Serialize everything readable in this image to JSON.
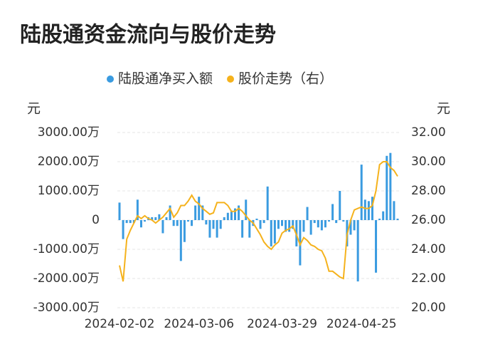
{
  "chart_data": {
    "type": "bar_line",
    "title": "陆股通资金流向与股价走势",
    "y_unit": "元",
    "y2_unit": "元",
    "categories": [
      "2024-02-02",
      null,
      null,
      null,
      null,
      null,
      null,
      null,
      null,
      null,
      null,
      null,
      null,
      null,
      null,
      null,
      null,
      null,
      null,
      null,
      null,
      null,
      "2024-03-06",
      null,
      null,
      null,
      null,
      null,
      null,
      null,
      null,
      null,
      null,
      null,
      null,
      null,
      null,
      null,
      null,
      null,
      null,
      null,
      null,
      null,
      null,
      "2024-03-29",
      null,
      null,
      null,
      null,
      null,
      null,
      null,
      null,
      null,
      null,
      null,
      null,
      null,
      null,
      null,
      null,
      null,
      null,
      null,
      null,
      null,
      "2024-04-25",
      null,
      null,
      null,
      null,
      null,
      null,
      null,
      null,
      null,
      null
    ],
    "series": [
      {
        "name": "陆股通净买入额",
        "color": "#3a9be0",
        "kind": "bar",
        "axis": "y",
        "values": [
          600,
          -650,
          -100,
          -100,
          -100,
          700,
          -250,
          -50,
          100,
          100,
          100,
          200,
          -450,
          100,
          500,
          -200,
          -200,
          -1400,
          -750,
          -50,
          -200,
          500,
          800,
          500,
          -150,
          -600,
          -300,
          -600,
          -300,
          100,
          250,
          300,
          400,
          500,
          -600,
          700,
          -600,
          -200,
          50,
          -300,
          -100,
          1150,
          -900,
          -800,
          -300,
          -200,
          -400,
          -400,
          -300,
          -900,
          -1550,
          -400,
          450,
          -500,
          -100,
          -250,
          -350,
          -250,
          -50,
          550,
          -100,
          1000,
          -50,
          -900,
          -500,
          -350,
          -2100,
          1900,
          700,
          650,
          800,
          -1800,
          50,
          300,
          2200,
          2300,
          650,
          50
        ]
      },
      {
        "name": "股价走势（右）",
        "color": "#f5b21c",
        "kind": "line",
        "axis": "y2",
        "values": [
          22.9,
          21.8,
          24.7,
          25.3,
          25.8,
          26.3,
          26.1,
          26.3,
          26.1,
          26.0,
          25.8,
          26.0,
          26.2,
          26.5,
          26.8,
          26.2,
          26.5,
          27.0,
          27.0,
          27.3,
          27.7,
          27.3,
          27.1,
          26.8,
          26.6,
          26.4,
          26.5,
          27.2,
          27.2,
          27.2,
          27.0,
          26.6,
          26.6,
          26.8,
          26.6,
          26.3,
          26.0,
          25.8,
          25.4,
          25.0,
          24.5,
          24.2,
          24.0,
          24.3,
          24.5,
          25.1,
          25.3,
          25.4,
          25.6,
          25.0,
          24.3,
          24.8,
          24.6,
          24.3,
          24.2,
          24.0,
          23.9,
          23.4,
          22.5,
          22.5,
          22.3,
          22.1,
          22.0,
          25.0,
          26.0,
          26.7,
          26.8,
          26.9,
          26.8,
          26.8,
          27.0,
          28.0,
          29.8,
          30.0,
          30.0,
          29.6,
          29.4,
          29.0
        ]
      }
    ],
    "ylim": [
      -3000,
      3000
    ],
    "yticks": [
      {
        "value": 3000,
        "label": "3000.00万"
      },
      {
        "value": 2000,
        "label": "2000.00万"
      },
      {
        "value": 1000,
        "label": "1000.00万"
      },
      0,
      {
        "value": -1000,
        "label": "-1000.00万"
      },
      {
        "value": -2000,
        "label": "-2000.00万"
      },
      {
        "value": -3000,
        "label": "-3000.00万"
      }
    ],
    "y2lim": [
      20,
      32
    ],
    "y2ticks": [
      {
        "value": 32,
        "label": "32.00"
      },
      {
        "value": 30,
        "label": "30.00"
      },
      {
        "value": 28,
        "label": "28.00"
      },
      {
        "value": 26,
        "label": "26.00"
      },
      {
        "value": 24,
        "label": "24.00"
      },
      {
        "value": 22,
        "label": "22.00"
      },
      {
        "value": 20,
        "label": "20.00"
      }
    ],
    "grid": true,
    "legend": "top"
  }
}
